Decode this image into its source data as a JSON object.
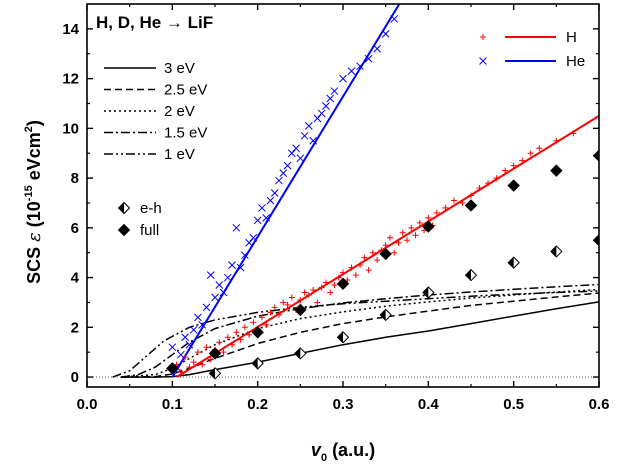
{
  "chart_data": {
    "type": "scatter",
    "title": "H, D, He → LiF",
    "xlabel": {
      "main": "v",
      "sub": "0",
      "rest": " (a.u.)"
    },
    "ylabel": {
      "main": "SCS ",
      "sym": "ε",
      "unit_pre": " (10",
      "exp": "-15",
      "unit_mid": " eVcm",
      "exp2": "2",
      "unit_post": ")"
    },
    "xlim": [
      0.0,
      0.6
    ],
    "ylim": [
      -0.4,
      15
    ],
    "xticks": [
      0.0,
      0.1,
      0.2,
      0.3,
      0.4,
      0.5,
      0.6
    ],
    "xtick_labels": [
      "0.0",
      "0.1",
      "0.2",
      "0.3",
      "0.4",
      "0.5",
      "0.6"
    ],
    "yticks": [
      0,
      2,
      4,
      6,
      8,
      10,
      12,
      14
    ],
    "ytick_labels": [
      "0",
      "2",
      "4",
      "6",
      "8",
      "10",
      "12",
      "14"
    ],
    "dotted_zero_line": true,
    "colors": {
      "H": "#ff0000",
      "He": "#0000ff",
      "black": "#000000"
    },
    "legend_left": [
      {
        "label": "3 eV",
        "dash": ""
      },
      {
        "label": "2.5 eV",
        "dash": "7,4"
      },
      {
        "label": "2 eV",
        "dash": "2,3"
      },
      {
        "label": "1.5 eV",
        "dash": "9,3,2,3"
      },
      {
        "label": "1 eV",
        "dash": "9,3,2,3,2,3"
      }
    ],
    "legend_markers": [
      {
        "label": "e-h",
        "marker": "half-diamond"
      },
      {
        "label": "full",
        "marker": "diamond"
      }
    ],
    "legend_right": [
      {
        "label": "H",
        "marker": "plus",
        "color": "#ff0000"
      },
      {
        "label": "He",
        "marker": "cross",
        "color": "#0000ff"
      }
    ],
    "fit_lines": [
      {
        "name": "H",
        "color": "#ff0000",
        "points": [
          [
            0.105,
            0.0
          ],
          [
            0.6,
            10.5
          ]
        ]
      },
      {
        "name": "He",
        "color": "#0000ff",
        "points": [
          [
            0.1,
            0.0
          ],
          [
            0.366,
            15.0
          ]
        ]
      }
    ],
    "model_curves": [
      {
        "name": "3 eV",
        "dash": "",
        "points": [
          [
            0.04,
            0
          ],
          [
            0.08,
            0
          ],
          [
            0.1,
            0.02
          ],
          [
            0.12,
            0.1
          ],
          [
            0.15,
            0.3
          ],
          [
            0.2,
            0.6
          ],
          [
            0.25,
            0.95
          ],
          [
            0.3,
            1.3
          ],
          [
            0.35,
            1.6
          ],
          [
            0.4,
            1.85
          ],
          [
            0.45,
            2.15
          ],
          [
            0.5,
            2.45
          ],
          [
            0.55,
            2.75
          ],
          [
            0.6,
            3.02
          ]
        ]
      },
      {
        "name": "2.5 eV",
        "dash": "7,4",
        "points": [
          [
            0.04,
            0
          ],
          [
            0.08,
            0.02
          ],
          [
            0.1,
            0.12
          ],
          [
            0.12,
            0.35
          ],
          [
            0.15,
            0.75
          ],
          [
            0.2,
            1.35
          ],
          [
            0.25,
            1.8
          ],
          [
            0.3,
            2.15
          ],
          [
            0.35,
            2.42
          ],
          [
            0.4,
            2.65
          ],
          [
            0.45,
            2.88
          ],
          [
            0.5,
            3.05
          ],
          [
            0.55,
            3.22
          ],
          [
            0.6,
            3.38
          ]
        ]
      },
      {
        "name": "2 eV",
        "dash": "2,3",
        "points": [
          [
            0.04,
            0
          ],
          [
            0.08,
            0.1
          ],
          [
            0.1,
            0.35
          ],
          [
            0.12,
            0.75
          ],
          [
            0.15,
            1.3
          ],
          [
            0.2,
            1.95
          ],
          [
            0.25,
            2.35
          ],
          [
            0.3,
            2.62
          ],
          [
            0.35,
            2.85
          ],
          [
            0.4,
            3.02
          ],
          [
            0.45,
            3.18
          ],
          [
            0.5,
            3.3
          ],
          [
            0.55,
            3.42
          ],
          [
            0.6,
            3.52
          ]
        ]
      },
      {
        "name": "1.5 eV",
        "dash": "9,3,2,3",
        "points": [
          [
            0.04,
            0
          ],
          [
            0.06,
            0.1
          ],
          [
            0.08,
            0.4
          ],
          [
            0.1,
            0.9
          ],
          [
            0.12,
            1.4
          ],
          [
            0.15,
            1.95
          ],
          [
            0.2,
            2.45
          ],
          [
            0.25,
            2.75
          ],
          [
            0.3,
            2.98
          ],
          [
            0.35,
            3.15
          ],
          [
            0.4,
            3.3
          ],
          [
            0.45,
            3.42
          ],
          [
            0.5,
            3.53
          ],
          [
            0.55,
            3.63
          ],
          [
            0.6,
            3.72
          ]
        ]
      },
      {
        "name": "1 eV",
        "dash": "9,3,2,3,2,3",
        "points": [
          [
            0.03,
            0
          ],
          [
            0.05,
            0.25
          ],
          [
            0.07,
            0.85
          ],
          [
            0.09,
            1.45
          ],
          [
            0.12,
            2.0
          ],
          [
            0.15,
            2.3
          ],
          [
            0.2,
            2.6
          ],
          [
            0.25,
            2.8
          ],
          [
            0.3,
            2.95
          ],
          [
            0.35,
            3.05
          ],
          [
            0.4,
            3.15
          ],
          [
            0.45,
            3.25
          ],
          [
            0.5,
            3.33
          ],
          [
            0.55,
            3.4
          ],
          [
            0.6,
            3.46
          ]
        ]
      }
    ],
    "scatter_H": [
      [
        0.1,
        0.3
      ],
      [
        0.105,
        0.5
      ],
      [
        0.11,
        0.2
      ],
      [
        0.115,
        0.8
      ],
      [
        0.12,
        0.4
      ],
      [
        0.125,
        0.6
      ],
      [
        0.13,
        1.0
      ],
      [
        0.135,
        0.5
      ],
      [
        0.14,
        1.2
      ],
      [
        0.145,
        0.7
      ],
      [
        0.15,
        1.1
      ],
      [
        0.155,
        1.4
      ],
      [
        0.16,
        1.0
      ],
      [
        0.165,
        1.6
      ],
      [
        0.17,
        1.3
      ],
      [
        0.175,
        1.8
      ],
      [
        0.18,
        1.5
      ],
      [
        0.185,
        2.0
      ],
      [
        0.19,
        1.7
      ],
      [
        0.195,
        2.2
      ],
      [
        0.2,
        1.9
      ],
      [
        0.205,
        2.4
      ],
      [
        0.21,
        2.1
      ],
      [
        0.215,
        2.6
      ],
      [
        0.22,
        2.8
      ],
      [
        0.225,
        2.5
      ],
      [
        0.23,
        3.0
      ],
      [
        0.235,
        2.9
      ],
      [
        0.24,
        3.2
      ],
      [
        0.245,
        2.7
      ],
      [
        0.25,
        3.1
      ],
      [
        0.255,
        3.4
      ],
      [
        0.26,
        3.3
      ],
      [
        0.265,
        3.5
      ],
      [
        0.27,
        3.0
      ],
      [
        0.275,
        3.6
      ],
      [
        0.28,
        3.8
      ],
      [
        0.285,
        3.4
      ],
      [
        0.29,
        3.7
      ],
      [
        0.295,
        4.0
      ],
      [
        0.3,
        4.2
      ],
      [
        0.305,
        3.9
      ],
      [
        0.31,
        4.4
      ],
      [
        0.315,
        4.1
      ],
      [
        0.32,
        4.5
      ],
      [
        0.325,
        4.8
      ],
      [
        0.33,
        4.3
      ],
      [
        0.335,
        5.0
      ],
      [
        0.34,
        4.7
      ],
      [
        0.345,
        5.1
      ],
      [
        0.35,
        5.3
      ],
      [
        0.355,
        5.6
      ],
      [
        0.36,
        5.0
      ],
      [
        0.365,
        5.4
      ],
      [
        0.37,
        5.8
      ],
      [
        0.375,
        5.5
      ],
      [
        0.38,
        6.0
      ],
      [
        0.385,
        5.7
      ],
      [
        0.39,
        6.2
      ],
      [
        0.395,
        5.9
      ],
      [
        0.4,
        6.4
      ],
      [
        0.405,
        6.1
      ],
      [
        0.41,
        6.6
      ],
      [
        0.42,
        6.8
      ],
      [
        0.43,
        7.1
      ],
      [
        0.44,
        7.0
      ],
      [
        0.45,
        7.3
      ],
      [
        0.46,
        7.6
      ],
      [
        0.47,
        7.8
      ],
      [
        0.48,
        8.0
      ],
      [
        0.49,
        8.3
      ],
      [
        0.5,
        8.5
      ],
      [
        0.51,
        8.7
      ],
      [
        0.52,
        9.0
      ],
      [
        0.53,
        9.2
      ],
      [
        0.55,
        9.5
      ],
      [
        0.57,
        9.8
      ]
    ],
    "scatter_He": [
      [
        0.1,
        1.2
      ],
      [
        0.105,
        0.4
      ],
      [
        0.11,
        0.9
      ],
      [
        0.115,
        1.6
      ],
      [
        0.12,
        1.3
      ],
      [
        0.125,
        1.9
      ],
      [
        0.13,
        2.4
      ],
      [
        0.135,
        2.1
      ],
      [
        0.14,
        2.8
      ],
      [
        0.145,
        4.1
      ],
      [
        0.15,
        3.2
      ],
      [
        0.155,
        3.7
      ],
      [
        0.16,
        3.4
      ],
      [
        0.165,
        4.0
      ],
      [
        0.17,
        4.5
      ],
      [
        0.175,
        6.0
      ],
      [
        0.18,
        4.4
      ],
      [
        0.185,
        4.9
      ],
      [
        0.19,
        5.4
      ],
      [
        0.195,
        5.6
      ],
      [
        0.2,
        6.3
      ],
      [
        0.205,
        6.8
      ],
      [
        0.21,
        6.4
      ],
      [
        0.215,
        7.1
      ],
      [
        0.22,
        7.4
      ],
      [
        0.225,
        7.9
      ],
      [
        0.23,
        8.2
      ],
      [
        0.235,
        8.5
      ],
      [
        0.24,
        9.0
      ],
      [
        0.245,
        9.2
      ],
      [
        0.25,
        8.8
      ],
      [
        0.255,
        9.7
      ],
      [
        0.26,
        10.1
      ],
      [
        0.265,
        9.5
      ],
      [
        0.27,
        10.4
      ],
      [
        0.275,
        10.6
      ],
      [
        0.28,
        10.9
      ],
      [
        0.285,
        11.2
      ],
      [
        0.29,
        11.5
      ],
      [
        0.3,
        12.0
      ],
      [
        0.31,
        12.3
      ],
      [
        0.32,
        12.5
      ],
      [
        0.33,
        12.8
      ],
      [
        0.34,
        13.2
      ],
      [
        0.35,
        13.8
      ],
      [
        0.36,
        14.4
      ]
    ],
    "eh_points": [
      [
        0.15,
        0.15
      ],
      [
        0.2,
        0.55
      ],
      [
        0.25,
        0.95
      ],
      [
        0.3,
        1.6
      ],
      [
        0.35,
        2.5
      ],
      [
        0.4,
        3.4
      ],
      [
        0.45,
        4.1
      ],
      [
        0.5,
        4.6
      ],
      [
        0.55,
        5.05
      ],
      [
        0.6,
        5.5
      ]
    ],
    "full_points": [
      [
        0.1,
        0.35
      ],
      [
        0.15,
        0.95
      ],
      [
        0.2,
        1.8
      ],
      [
        0.25,
        2.7
      ],
      [
        0.3,
        3.75
      ],
      [
        0.35,
        4.95
      ],
      [
        0.4,
        6.05
      ],
      [
        0.45,
        6.9
      ],
      [
        0.5,
        7.7
      ],
      [
        0.55,
        8.3
      ],
      [
        0.6,
        8.9
      ]
    ]
  }
}
